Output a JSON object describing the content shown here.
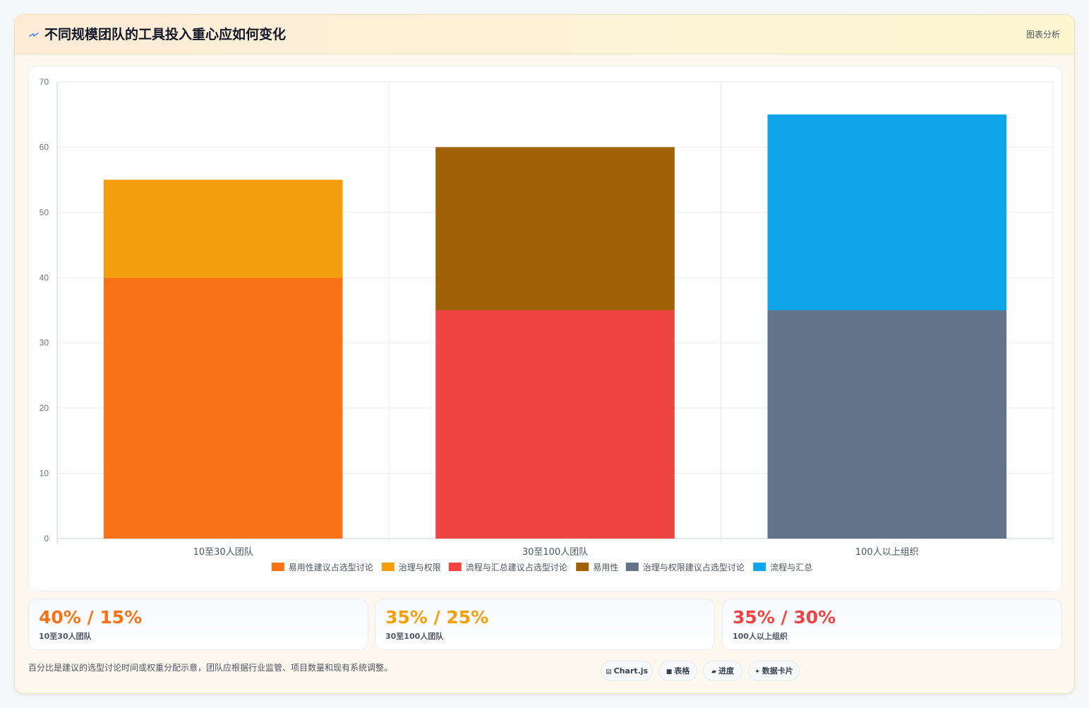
{
  "header": {
    "icon": "spark-icon",
    "title": "不同规模团队的工具投入重心应如何变化",
    "link_label": "图表分析"
  },
  "chart_data": {
    "type": "bar",
    "stacked": true,
    "categories": [
      "10至30人团队",
      "30至100人团队",
      "100人以上组织"
    ],
    "series": [
      {
        "name": "易用性建议占选型讨论",
        "values": [
          40,
          null,
          null
        ],
        "color": "#f97316"
      },
      {
        "name": "治理与权限",
        "values": [
          15,
          null,
          null
        ],
        "color": "#f59e0b"
      },
      {
        "name": "流程与汇总建议占选型讨论",
        "values": [
          null,
          35,
          null
        ],
        "color": "#ef4444"
      },
      {
        "name": "易用性",
        "values": [
          null,
          25,
          null
        ],
        "color": "#a16207"
      },
      {
        "name": "治理与权限建议占选型讨论",
        "values": [
          null,
          null,
          35
        ],
        "color": "#64748b"
      },
      {
        "name": "流程与汇总",
        "values": [
          null,
          null,
          30
        ],
        "color": "#0ea5e9"
      }
    ],
    "yticks": [
      0,
      10,
      20,
      30,
      40,
      50,
      60,
      70
    ],
    "ylim": [
      0,
      70
    ],
    "grid": true,
    "legend": "bottom"
  },
  "stats": [
    {
      "value": "40% / 15%",
      "label": "10至30人团队",
      "color": "#f97316"
    },
    {
      "value": "35% / 25%",
      "label": "30至100人团队",
      "color": "#f59e0b"
    },
    {
      "value": "35% / 30%",
      "label": "100人以上组织",
      "color": "#ef4444"
    }
  ],
  "footnote": "百分比是建议的选型讨论时间或权重分配示意，团队应根据行业监管、项目数量和现有系统调整。",
  "chips": [
    {
      "icon": "chart-icon",
      "glyph": "▤",
      "label": "Chart.js"
    },
    {
      "icon": "table-icon",
      "glyph": "■",
      "label": "表格"
    },
    {
      "icon": "progress-icon",
      "glyph": "▰",
      "label": "进度"
    },
    {
      "icon": "card-icon",
      "glyph": "✦",
      "label": "数据卡片"
    }
  ]
}
